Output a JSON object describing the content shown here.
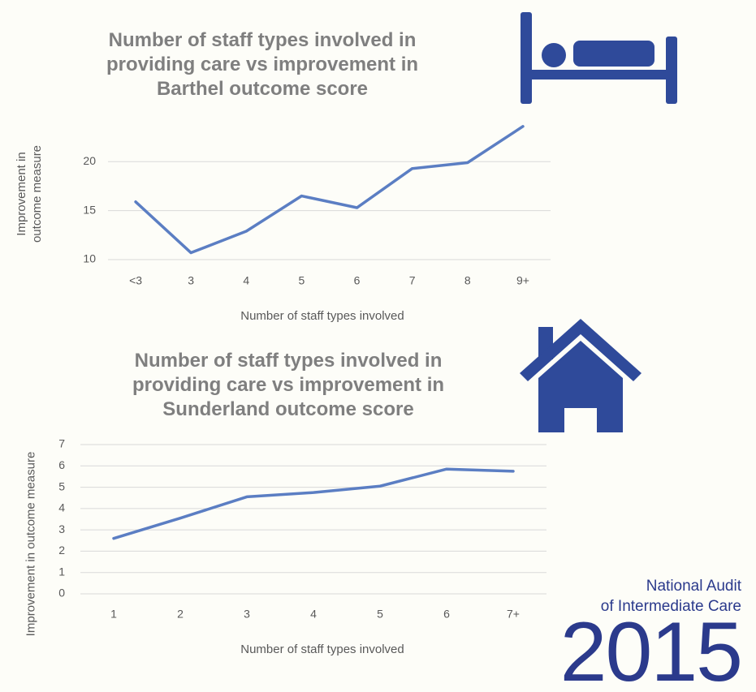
{
  "chart_data": [
    {
      "type": "line",
      "title": "Number of staff types involved in providing care vs improvement in Barthel outcome score",
      "x_label": "Number of staff types involved",
      "y_label": "Improvement in outcome measure",
      "categories": [
        "<3",
        "3",
        "4",
        "5",
        "6",
        "7",
        "8",
        "9+"
      ],
      "values": [
        15.9,
        10.7,
        12.9,
        16.5,
        15.3,
        19.3,
        19.9,
        23.6
      ],
      "color": "#5b7ec3",
      "ylim": [
        10,
        24
      ],
      "yticks": [
        10,
        15,
        20
      ],
      "grid": true
    },
    {
      "type": "line",
      "title": "Number of staff types involved in providing care vs improvement in Sunderland outcome score",
      "x_label": "Number of staff types involved",
      "y_label": "Improvement in outcome measure",
      "categories": [
        "1",
        "2",
        "3",
        "4",
        "5",
        "6",
        "7+"
      ],
      "values": [
        2.6,
        3.55,
        4.55,
        4.75,
        5.05,
        5.85,
        5.75
      ],
      "color": "#5b7ec3",
      "ylim": [
        0,
        7
      ],
      "yticks": [
        0,
        1,
        2,
        3,
        4,
        5,
        6,
        7
      ],
      "grid": true
    }
  ],
  "branding": {
    "line1": "National Audit",
    "line2": "of Intermediate Care",
    "year": "2015"
  }
}
